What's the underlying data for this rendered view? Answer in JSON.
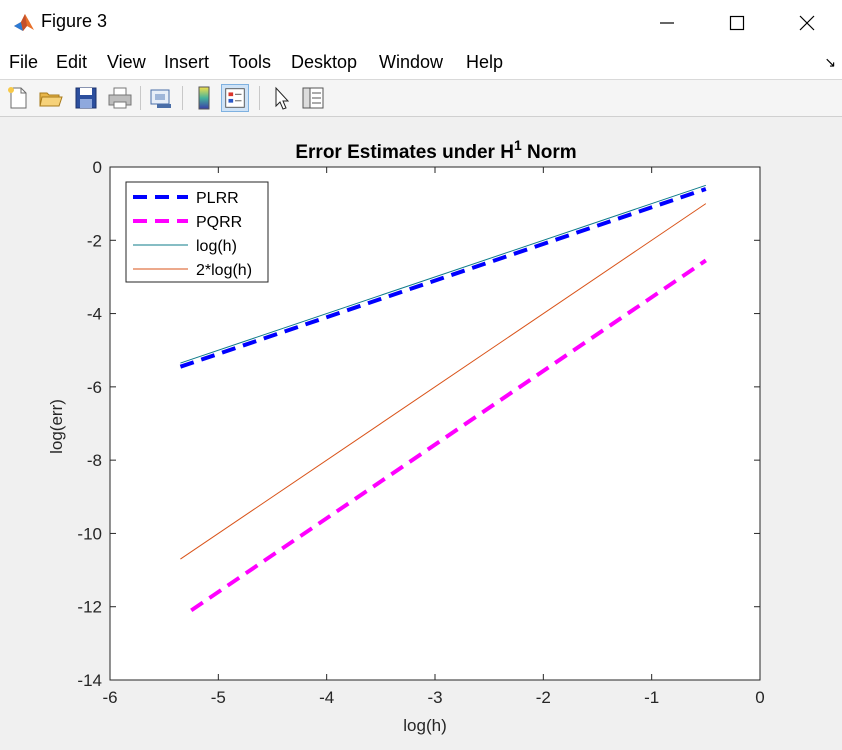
{
  "window": {
    "title": "Figure 3",
    "minimize_icon": "minimize-icon",
    "maximize_icon": "maximize-icon",
    "close_icon": "close-icon"
  },
  "menu": {
    "items": [
      "File",
      "Edit",
      "View",
      "Insert",
      "Tools",
      "Desktop",
      "Window",
      "Help"
    ],
    "dock_icon": "dock-arrow-icon"
  },
  "toolbar": {
    "icons": [
      "new-figure-icon",
      "open-file-icon",
      "save-icon",
      "print-icon",
      "link-plot-icon",
      "insert-colorbar-icon",
      "insert-legend-icon",
      "edit-plot-icon",
      "property-inspector-icon"
    ],
    "active": "insert-legend-icon"
  },
  "chart_data": {
    "type": "line",
    "title_main": "Error Estimates under H",
    "title_sup": "1",
    "title_tail": " Norm",
    "xlabel": "log(h)",
    "ylabel": "log(err)",
    "xlim": [
      -6,
      0
    ],
    "ylim": [
      -14,
      0
    ],
    "xticks": [
      -6,
      -5,
      -4,
      -3,
      -2,
      -1,
      0
    ],
    "yticks": [
      0,
      -2,
      -4,
      -6,
      -8,
      -10,
      -12,
      -14
    ],
    "grid": false,
    "legend_position": "top-left",
    "series": [
      {
        "name": "PLRR",
        "x": [
          -5.35,
          -0.5
        ],
        "y": [
          -5.45,
          -0.6
        ],
        "color": "#0000ff",
        "style": "dashed",
        "width": 4
      },
      {
        "name": "PQRR",
        "x": [
          -5.25,
          -0.5
        ],
        "y": [
          -12.1,
          -2.55
        ],
        "color": "#ff00ff",
        "style": "dashed",
        "width": 4
      },
      {
        "name": "log(h)",
        "x": [
          -5.35,
          -0.5
        ],
        "y": [
          -5.35,
          -0.5
        ],
        "color": "#0e7b8a",
        "style": "solid",
        "width": 1
      },
      {
        "name": "2*log(h)",
        "x": [
          -5.35,
          -0.5
        ],
        "y": [
          -10.7,
          -1.0
        ],
        "color": "#d95319",
        "style": "solid",
        "width": 1
      }
    ]
  }
}
